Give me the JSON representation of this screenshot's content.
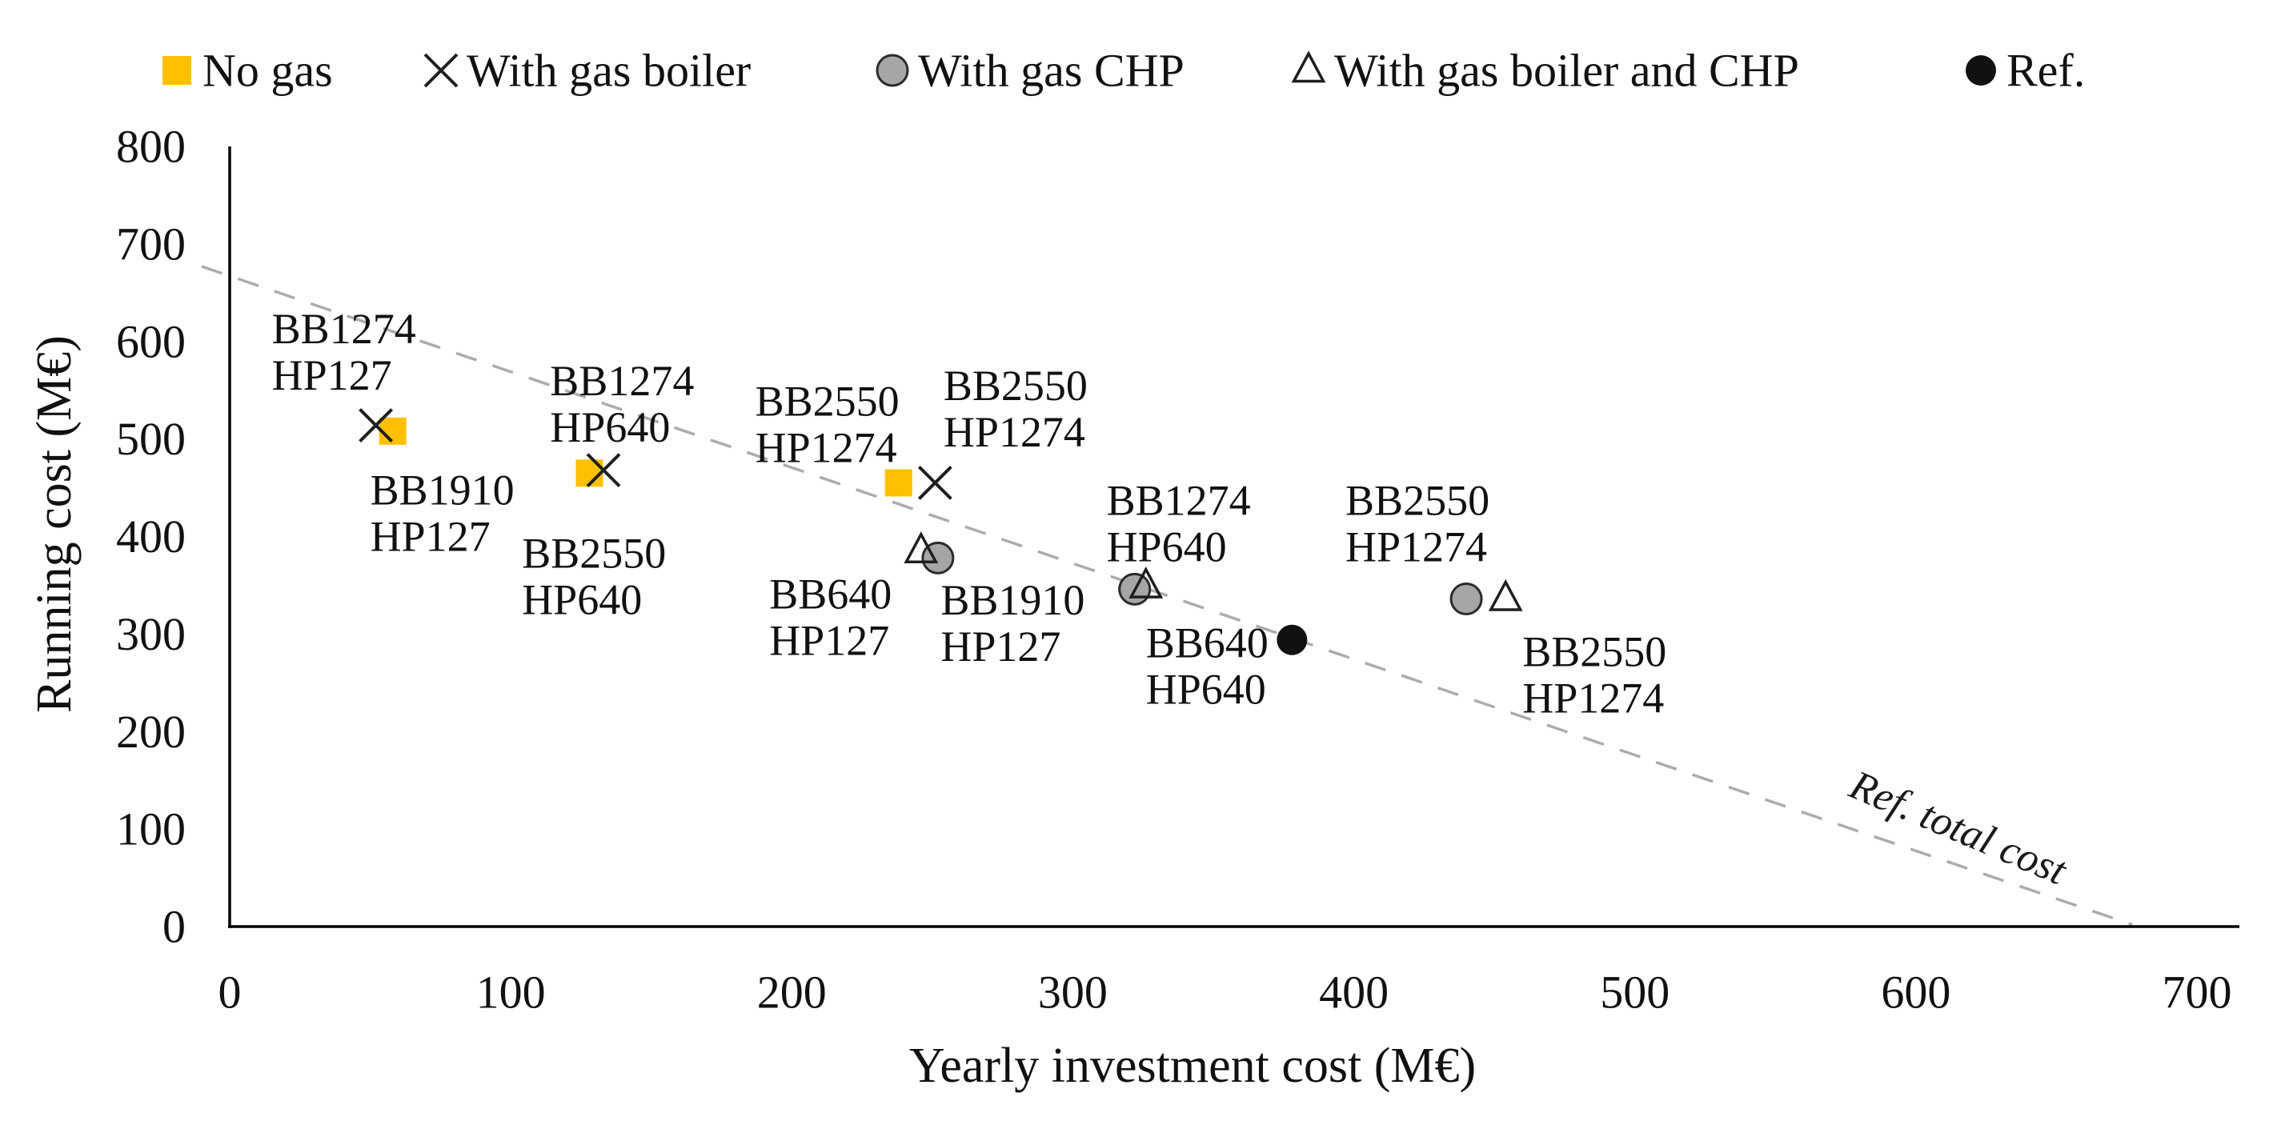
{
  "figure": {
    "background": "#ffffff",
    "text_color": "#111111"
  },
  "chart_data": {
    "type": "scatter",
    "title": "",
    "xlabel": "Yearly investment cost (M€)",
    "ylabel": "Running cost (M€)",
    "xlim": [
      0,
      700
    ],
    "ylim": [
      0,
      800
    ],
    "xticks": [
      0,
      100,
      200,
      300,
      400,
      500,
      600,
      700
    ],
    "yticks": [
      0,
      100,
      200,
      300,
      400,
      500,
      600,
      700,
      800
    ],
    "grid": false,
    "legend_position": "top",
    "series": [
      {
        "name": "No gas",
        "marker": "square",
        "color": "#FFC000",
        "points": [
          {
            "x": 58,
            "y": 508,
            "label": "BB1910 HP127"
          },
          {
            "x": 128,
            "y": 465,
            "label": "BB2550 HP640"
          },
          {
            "x": 238,
            "y": 455,
            "label": "BB2550 HP1274"
          }
        ]
      },
      {
        "name": "With gas boiler",
        "marker": "cross",
        "color": "#1f1f1f",
        "points": [
          {
            "x": 52,
            "y": 514,
            "label": "BB1274 HP127"
          },
          {
            "x": 133,
            "y": 468,
            "label": "BB1274 HP640"
          },
          {
            "x": 251,
            "y": 455,
            "label": "BB2550 HP1274"
          }
        ]
      },
      {
        "name": "With gas CHP",
        "marker": "circle",
        "color": "#A6A6A6",
        "points": [
          {
            "x": 252,
            "y": 378,
            "label": "BB1910 HP127"
          },
          {
            "x": 322,
            "y": 346,
            "label": "BB1274 HP640"
          },
          {
            "x": 440,
            "y": 336,
            "label": "BB2550 HP1274"
          }
        ]
      },
      {
        "name": "With gas boiler and CHP",
        "marker": "triangle",
        "color": "#ffffff",
        "points": [
          {
            "x": 246,
            "y": 385,
            "label": "BB640 HP127"
          },
          {
            "x": 326,
            "y": 349,
            "label": "BB1274 HP640"
          },
          {
            "x": 454,
            "y": 336,
            "label": "BB2550 HP1274"
          }
        ]
      },
      {
        "name": "Ref.",
        "marker": "dot",
        "color": "#111111",
        "points": [
          {
            "x": 378,
            "y": 294,
            "label": "BB640 HP640"
          }
        ]
      }
    ],
    "ref_line": {
      "label": "Ref. total cost",
      "style": "dashed",
      "color": "#ACACAC",
      "from": {
        "x": -10,
        "y": 677
      },
      "to": {
        "x": 677,
        "y": 2
      },
      "label_anchor": {
        "x": 615,
        "y": 101
      }
    },
    "annotations": [
      {
        "lines": [
          "BB1274",
          "HP127"
        ],
        "x": 15,
        "y": 589
      },
      {
        "lines": [
          "BB1910",
          "HP127"
        ],
        "x": 50,
        "y": 424
      },
      {
        "lines": [
          "BB1274",
          "HP640"
        ],
        "x": 114,
        "y": 536
      },
      {
        "lines": [
          "BB2550",
          "HP640"
        ],
        "x": 104,
        "y": 359
      },
      {
        "lines": [
          "BB2550",
          "HP1274"
        ],
        "x": 187,
        "y": 515
      },
      {
        "lines": [
          "BB2550",
          "HP1274"
        ],
        "x": 254,
        "y": 531
      },
      {
        "lines": [
          "BB640",
          "HP127"
        ],
        "x": 192,
        "y": 317
      },
      {
        "lines": [
          "BB1910",
          "HP127"
        ],
        "x": 253,
        "y": 311
      },
      {
        "lines": [
          "BB1274",
          "HP640"
        ],
        "x": 312,
        "y": 413
      },
      {
        "lines": [
          "BB640",
          "HP640"
        ],
        "x": 326,
        "y": 267
      },
      {
        "lines": [
          "BB2550",
          "HP1274"
        ],
        "x": 397,
        "y": 413
      },
      {
        "lines": [
          "BB2550",
          "HP1274"
        ],
        "x": 460,
        "y": 258
      }
    ]
  }
}
